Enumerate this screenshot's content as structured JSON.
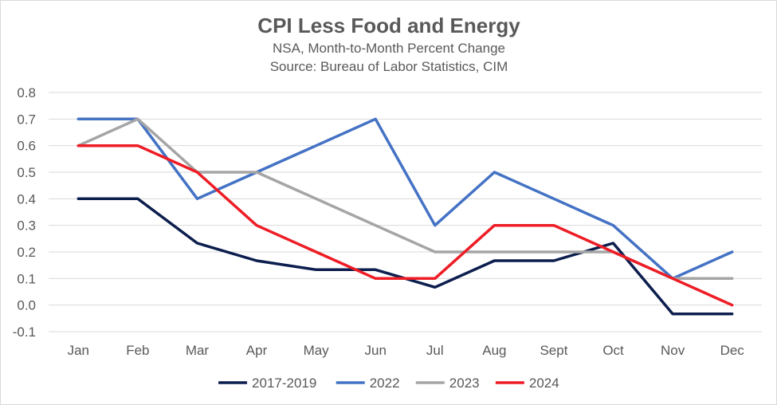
{
  "chart_data": {
    "type": "line",
    "title": "CPI Less Food and Energy",
    "subtitle": [
      "NSA, Month-to-Month Percent Change",
      "Source: Bureau of Labor Statistics, CIM"
    ],
    "xlabel": "",
    "ylabel": "",
    "categories": [
      "Jan",
      "Feb",
      "Mar",
      "Apr",
      "May",
      "Jun",
      "Jul",
      "Aug",
      "Sept",
      "Oct",
      "Nov",
      "Dec"
    ],
    "ylim": [
      -0.1,
      0.8
    ],
    "yticks": [
      "0.8",
      "0.7",
      "0.6",
      "0.5",
      "0.4",
      "0.3",
      "0.2",
      "0.1",
      "0.0",
      "-0.1"
    ],
    "ytick_values": [
      0.8,
      0.7,
      0.6,
      0.5,
      0.4,
      0.3,
      0.2,
      0.1,
      0.0,
      -0.1
    ],
    "grid": true,
    "legend_position": "bottom",
    "series": [
      {
        "name": "2017-2019",
        "color": "#0c1e4e",
        "values": [
          0.4,
          0.4,
          0.233,
          0.167,
          0.133,
          0.133,
          0.067,
          0.167,
          0.167,
          0.233,
          -0.033,
          -0.033
        ]
      },
      {
        "name": "2022",
        "color": "#4472c4",
        "values": [
          0.7,
          0.7,
          0.4,
          0.5,
          0.6,
          0.7,
          0.3,
          0.5,
          0.4,
          0.3,
          0.1,
          0.2
        ]
      },
      {
        "name": "2023",
        "color": "#a5a5a5",
        "values": [
          0.6,
          0.7,
          0.5,
          0.5,
          0.4,
          0.3,
          0.2,
          0.2,
          0.2,
          0.2,
          0.1,
          0.1
        ]
      },
      {
        "name": "2024",
        "color": "#ee1c25",
        "values": [
          0.6,
          0.6,
          0.5,
          0.3,
          0.2,
          0.1,
          0.1,
          0.3,
          0.3,
          0.2,
          0.1,
          0.0
        ]
      }
    ]
  }
}
